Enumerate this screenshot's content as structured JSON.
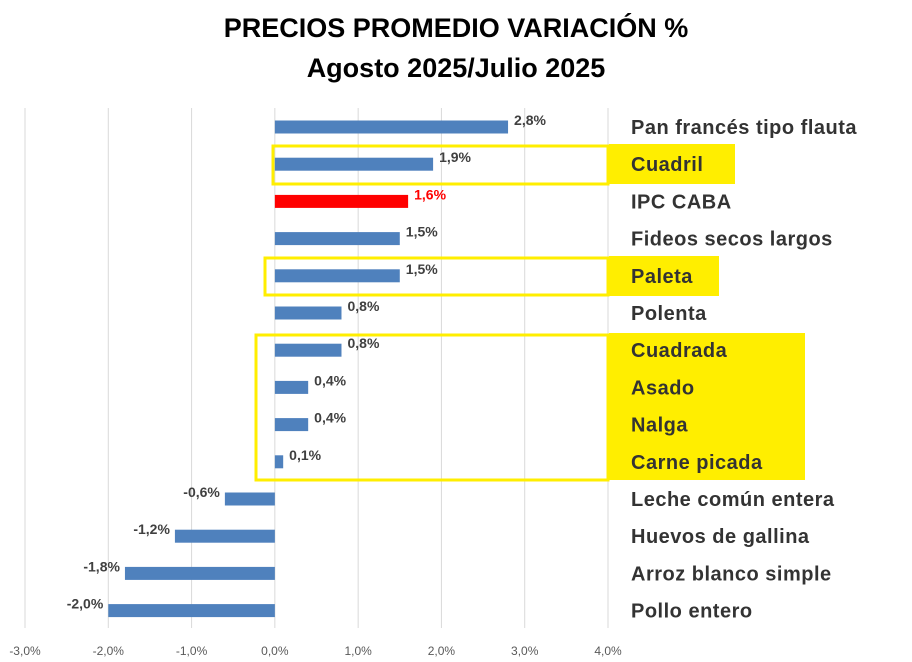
{
  "title": "PRECIOS PROMEDIO  VARIACIÓN %",
  "subtitle": "Agosto 2025/Julio 2025",
  "colors": {
    "bar": "#4f81bd",
    "highlight_bar": "#ff0000",
    "highlight_label": "#ff0000",
    "box": "#ffee00",
    "grid": "#d9d9d9"
  },
  "chart_data": {
    "type": "bar",
    "orientation": "horizontal",
    "categories": [
      "Pan francés tipo flauta",
      "Cuadril",
      "IPC CABA",
      "Fideos secos largos",
      "Paleta",
      "Polenta",
      "Cuadrada",
      "Asado",
      "Nalga",
      "Carne picada",
      "Leche común entera",
      "Huevos de gallina",
      "Arroz blanco simple",
      "Pollo entero"
    ],
    "values": [
      2.8,
      1.9,
      1.6,
      1.5,
      1.5,
      0.8,
      0.8,
      0.4,
      0.4,
      0.1,
      -0.6,
      -1.2,
      -1.8,
      -2.0
    ],
    "value_labels": [
      "2,8%",
      "1,9%",
      "1,6%",
      "1,5%",
      "1,5%",
      "0,8%",
      "0,8%",
      "0,4%",
      "0,4%",
      "0,1%",
      "-0,6%",
      "-1,2%",
      "-1,8%",
      "-2,0%"
    ],
    "highlighted_category": "IPC CABA",
    "boxed_groups": [
      [
        "Cuadril"
      ],
      [
        "Paleta"
      ],
      [
        "Cuadrada",
        "Asado",
        "Nalga",
        "Carne picada"
      ]
    ],
    "xlim": [
      -3.0,
      4.0
    ],
    "xticks": [
      -3,
      -2,
      -1,
      0,
      1,
      2,
      3,
      4
    ],
    "xtick_labels": [
      "-3,0%",
      "-2,0%",
      "-1,0%",
      "0,0%",
      "1,0%",
      "2,0%",
      "3,0%",
      "4,0%"
    ],
    "grid": true,
    "legend": "none"
  }
}
